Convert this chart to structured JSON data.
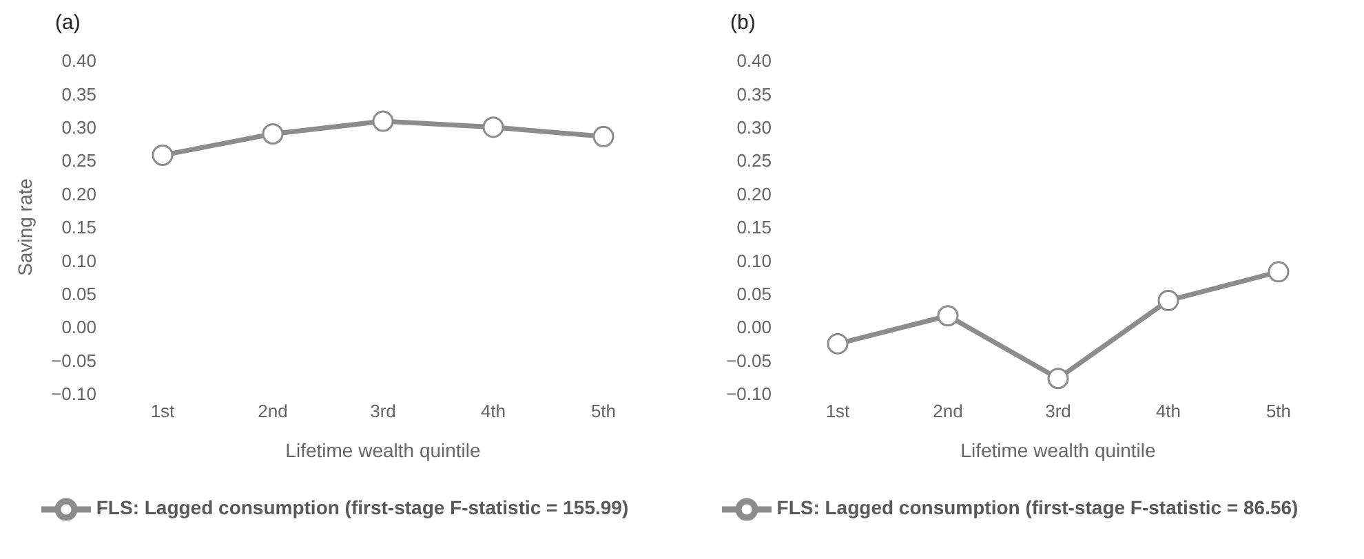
{
  "chart_data": [
    {
      "type": "line",
      "title": "(a)",
      "xlabel": "Lifetime wealth quintile",
      "ylabel": "Saving rate",
      "categories": [
        "1st",
        "2nd",
        "3rd",
        "4th",
        "5th"
      ],
      "series": [
        {
          "name": "FLS: Lagged consumption (first-stage F-statistic = 155.99)",
          "color": "#8c8c8c",
          "values": [
            0.258,
            0.29,
            0.309,
            0.3,
            0.286
          ]
        }
      ],
      "ylim": [
        -0.1,
        0.4
      ],
      "yticks": [
        {
          "value": -0.1,
          "label": "−0.10"
        },
        {
          "value": -0.05,
          "label": "−0.05"
        },
        {
          "value": 0,
          "label": "0.00"
        },
        {
          "value": 0.05,
          "label": "0.05"
        },
        {
          "value": 0.1,
          "label": "0.10"
        },
        {
          "value": 0.15,
          "label": "0.15"
        },
        {
          "value": 0.2,
          "label": "0.20"
        },
        {
          "value": 0.25,
          "label": "0.25"
        },
        {
          "value": 0.3,
          "label": "0.30"
        },
        {
          "value": 0.35,
          "label": "0.35"
        },
        {
          "value": 0.4,
          "label": "0.40"
        }
      ],
      "grid": false,
      "legend": "bottom",
      "marker": "circle",
      "line_style": "solid"
    },
    {
      "type": "line",
      "title": "(b)",
      "xlabel": "Lifetime wealth quintile",
      "categories": [
        "1st",
        "2nd",
        "3rd",
        "4th",
        "5th"
      ],
      "series": [
        {
          "name": "FLS: Lagged consumption (first-stage F-statistic = 86.56)",
          "color": "#8c8c8c",
          "values": [
            -0.025,
            0.017,
            -0.077,
            0.04,
            0.083
          ]
        }
      ],
      "ylim": [
        -0.1,
        0.4
      ],
      "yticks": [
        {
          "value": -0.1,
          "label": "−0.10"
        },
        {
          "value": -0.05,
          "label": "−0.05"
        },
        {
          "value": 0,
          "label": "0.00"
        },
        {
          "value": 0.05,
          "label": "0.05"
        },
        {
          "value": 0.1,
          "label": "0.10"
        },
        {
          "value": 0.15,
          "label": "0.15"
        },
        {
          "value": 0.2,
          "label": "0.20"
        },
        {
          "value": 0.25,
          "label": "0.25"
        },
        {
          "value": 0.3,
          "label": "0.30"
        },
        {
          "value": 0.35,
          "label": "0.35"
        },
        {
          "value": 0.4,
          "label": "0.40"
        }
      ],
      "grid": false,
      "legend": "bottom",
      "marker": "circle",
      "line_style": "solid"
    }
  ]
}
